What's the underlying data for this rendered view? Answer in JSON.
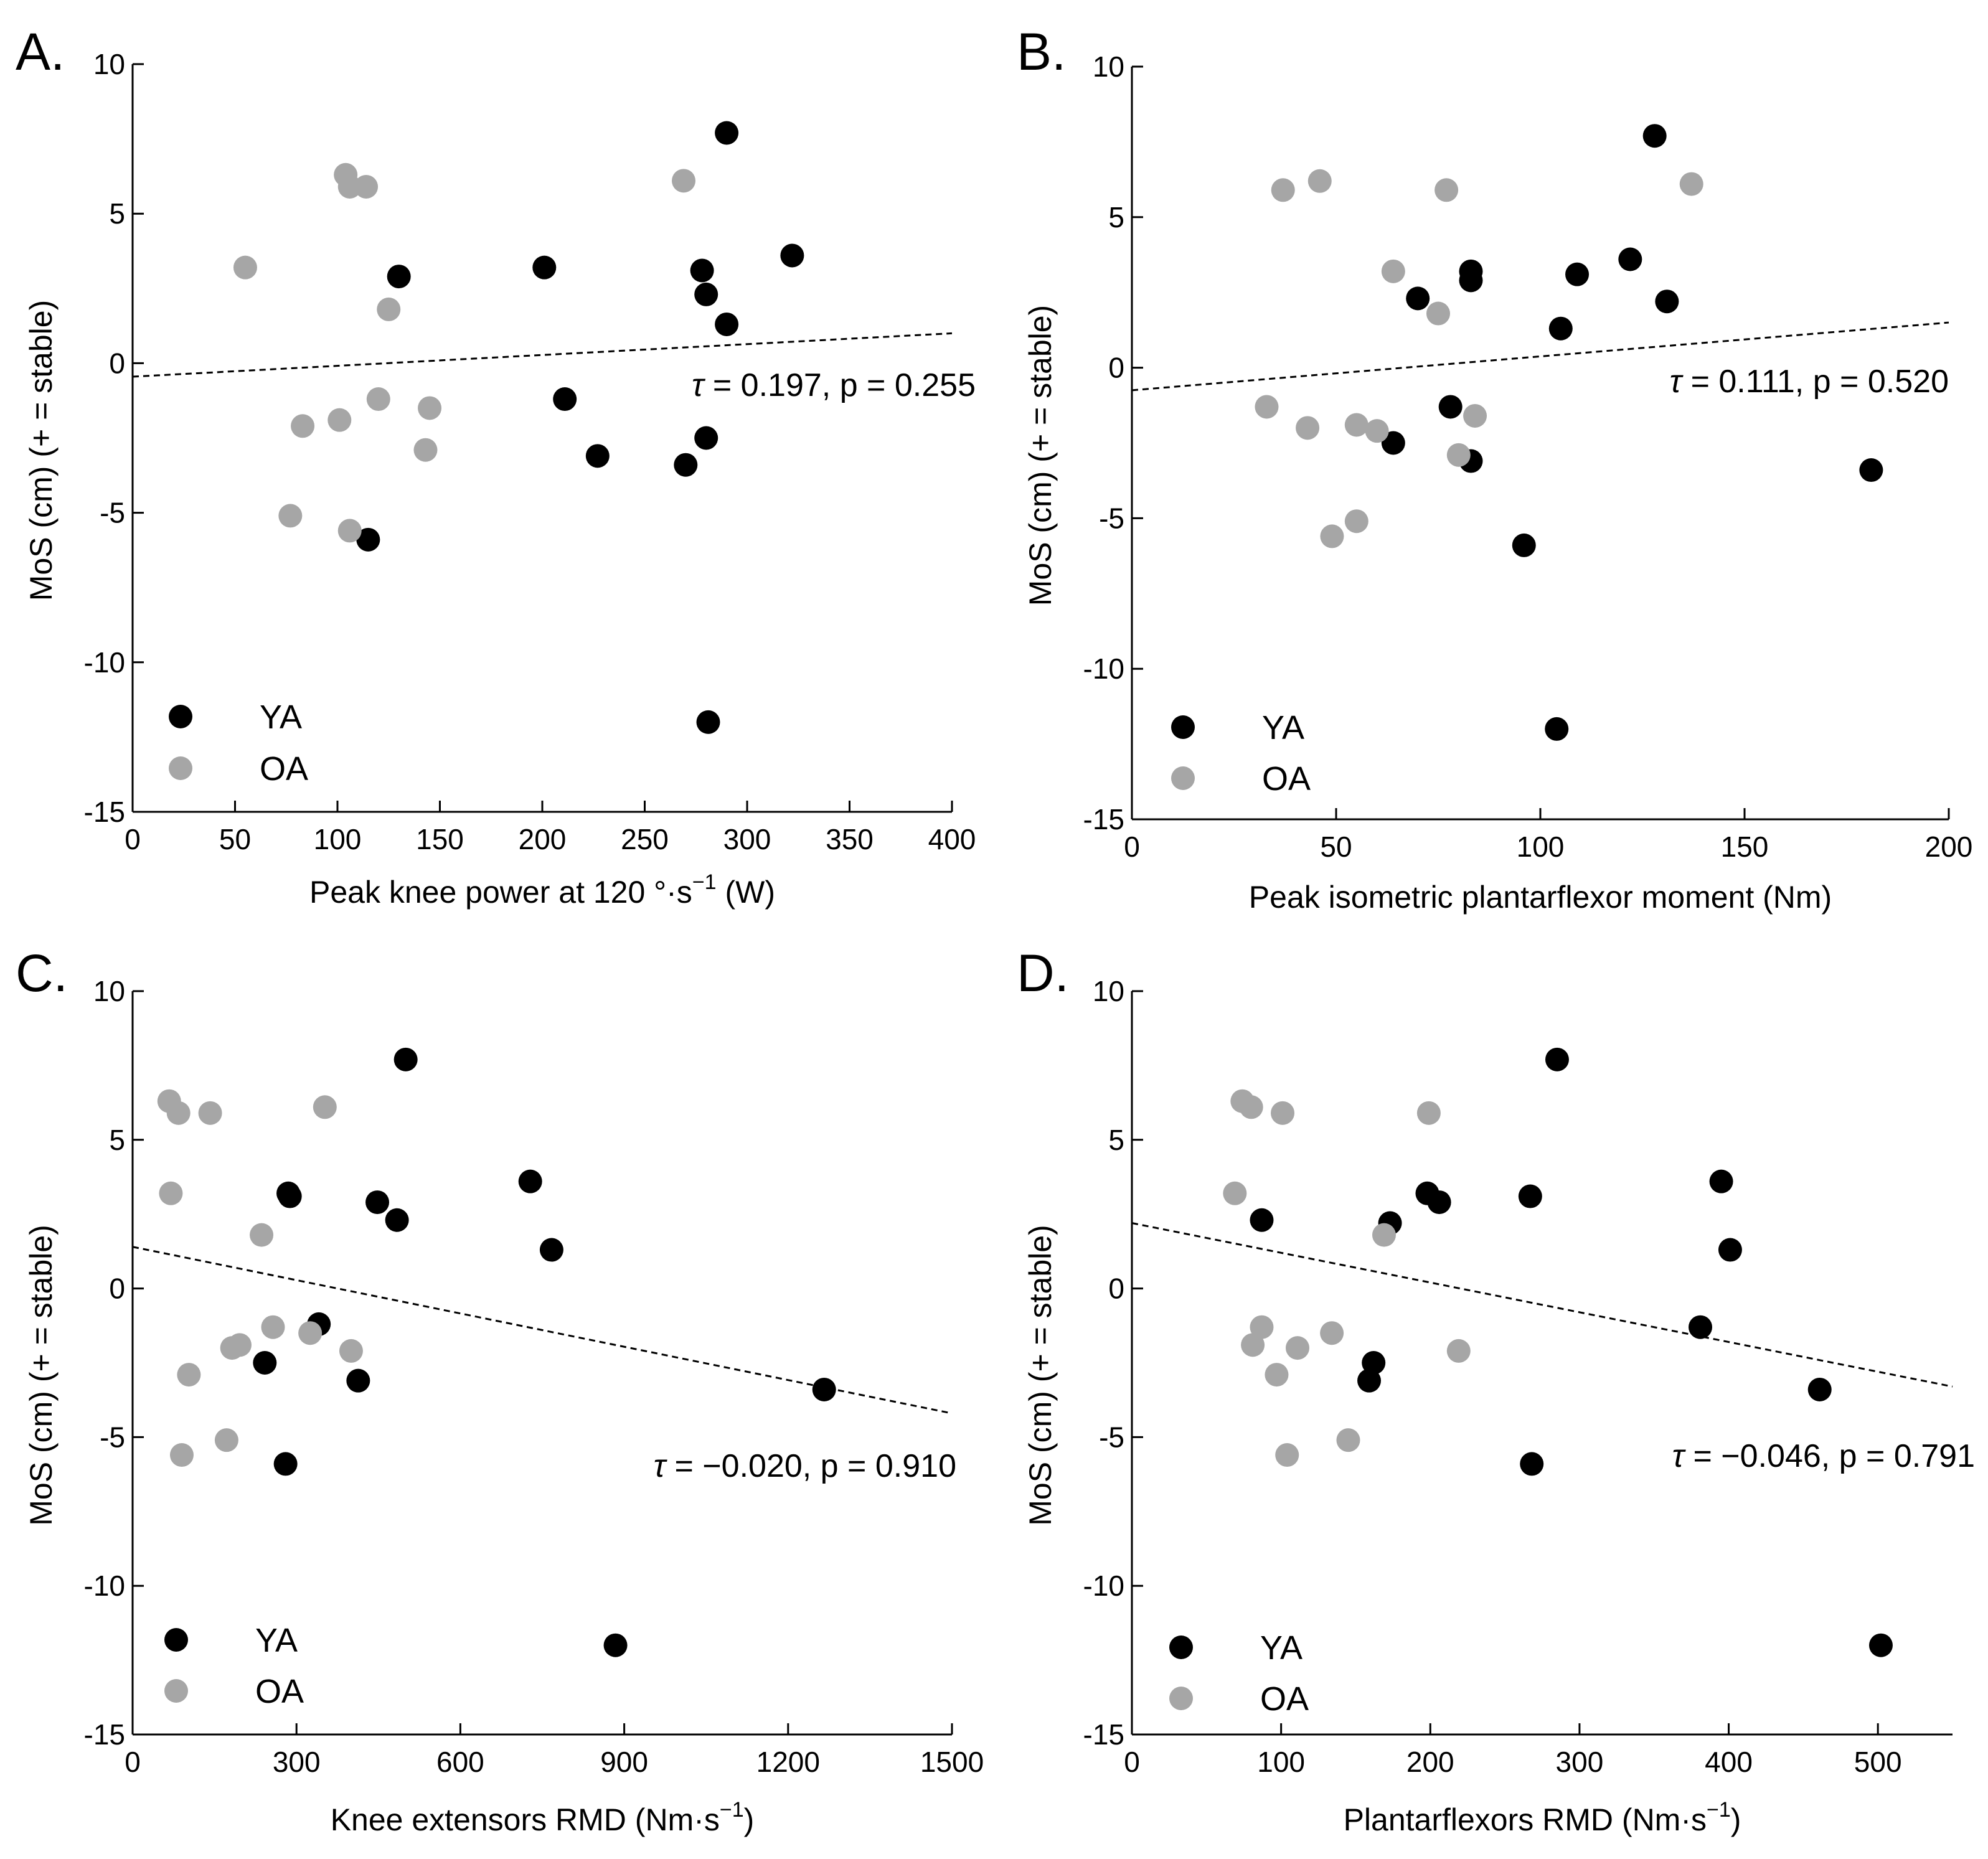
{
  "figure": {
    "colors": {
      "YA": "#000000",
      "OA": "#a6a6a6",
      "axis": "#000000",
      "fit": "#000000"
    }
  },
  "chart_data": [
    {
      "panel": "A.",
      "type": "scatter",
      "xlabel": "Peak knee power at 120 °·s",
      "xlabel_exp": "−1",
      "xlabel_tail": " (W)",
      "ylabel": "MoS (cm) (+ = stable)",
      "xlim": [
        0,
        400
      ],
      "ylim": [
        -15,
        10
      ],
      "xticks": [
        0,
        50,
        100,
        150,
        200,
        250,
        300,
        350,
        400
      ],
      "xtick_labels": [
        "0",
        "50",
        "100",
        "150",
        "200",
        "250",
        "300",
        "350",
        "400"
      ],
      "yticks": [
        -15,
        -10,
        -5,
        0,
        5,
        10
      ],
      "ytick_labels": [
        "-15",
        "-10",
        "-5",
        "0",
        "5",
        "10"
      ],
      "stat_tau": "τ",
      "stat_text": " = 0.197, p = 0.255",
      "trend": [
        [
          0,
          -0.45
        ],
        [
          400,
          1.0
        ]
      ],
      "legend": [
        "YA",
        "OA"
      ],
      "series": [
        {
          "name": "YA",
          "points": [
            [
              290,
              7.7
            ],
            [
              322,
              3.6
            ],
            [
              201,
              3.2
            ],
            [
              278,
              3.1
            ],
            [
              130,
              2.9
            ],
            [
              280,
              2.3
            ],
            [
              290,
              1.3
            ],
            [
              211,
              -1.2
            ],
            [
              280,
              -2.5
            ],
            [
              227,
              -3.1
            ],
            [
              270,
              -3.4
            ],
            [
              115,
              -5.9
            ],
            [
              281,
              -12.0
            ]
          ]
        },
        {
          "name": "OA",
          "points": [
            [
              104,
              6.3
            ],
            [
              106,
              5.9
            ],
            [
              114,
              5.9
            ],
            [
              269,
              6.1
            ],
            [
              55,
              3.2
            ],
            [
              125,
              1.8
            ],
            [
              120,
              -1.2
            ],
            [
              145,
              -1.5
            ],
            [
              101,
              -1.9
            ],
            [
              83,
              -2.1
            ],
            [
              143,
              -2.9
            ],
            [
              77,
              -5.1
            ],
            [
              106,
              -5.6
            ]
          ]
        }
      ]
    },
    {
      "panel": "B.",
      "type": "scatter",
      "xlabel": "Peak isometric plantarflexor moment (Nm)",
      "xlabel_exp": "",
      "xlabel_tail": "",
      "ylabel": "MoS (cm) (+ = stable)",
      "xlim": [
        0,
        200
      ],
      "ylim": [
        -15,
        10
      ],
      "xticks": [
        0,
        50,
        100,
        150,
        200
      ],
      "xtick_labels": [
        "0",
        "50",
        "100",
        "150",
        "200"
      ],
      "yticks": [
        -15,
        -10,
        -5,
        0,
        5,
        10
      ],
      "ytick_labels": [
        "-15",
        "-10",
        "-5",
        "0",
        "5",
        "10"
      ],
      "stat_tau": "τ",
      "stat_text": " = 0.111, p = 0.520",
      "trend": [
        [
          0,
          -0.75
        ],
        [
          200,
          1.5
        ]
      ],
      "legend": [
        "YA",
        "OA"
      ],
      "series": [
        {
          "name": "YA",
          "points": [
            [
              128,
              7.7
            ],
            [
              122,
              3.6
            ],
            [
              83,
              3.2
            ],
            [
              109,
              3.1
            ],
            [
              83,
              2.9
            ],
            [
              70,
              2.3
            ],
            [
              131,
              2.2
            ],
            [
              105,
              1.3
            ],
            [
              78,
              -1.3
            ],
            [
              64,
              -2.5
            ],
            [
              83,
              -3.1
            ],
            [
              181,
              -3.4
            ],
            [
              96,
              -5.9
            ],
            [
              104,
              -12.0
            ]
          ]
        },
        {
          "name": "OA",
          "points": [
            [
              37,
              5.9
            ],
            [
              46,
              6.2
            ],
            [
              77,
              5.9
            ],
            [
              137,
              6.1
            ],
            [
              64,
              3.2
            ],
            [
              75,
              1.8
            ],
            [
              33,
              -1.3
            ],
            [
              84,
              -1.6
            ],
            [
              43,
              -2.0
            ],
            [
              55,
              -1.9
            ],
            [
              60,
              -2.1
            ],
            [
              80,
              -2.9
            ],
            [
              55,
              -5.1
            ],
            [
              49,
              -5.6
            ]
          ]
        }
      ]
    },
    {
      "panel": "C.",
      "type": "scatter",
      "xlabel": "Knee extensors RMD (Nm·s",
      "xlabel_exp": "−1",
      "xlabel_tail": ")",
      "ylabel": "MoS (cm) (+ = stable)",
      "xlim": [
        0,
        1500
      ],
      "ylim": [
        -15,
        10
      ],
      "xticks": [
        0,
        300,
        600,
        900,
        1200,
        1500
      ],
      "xtick_labels": [
        "0",
        "300",
        "600",
        "900",
        "1200",
        "1500"
      ],
      "yticks": [
        -15,
        -10,
        -5,
        0,
        5,
        10
      ],
      "ytick_labels": [
        "-15",
        "-10",
        "-5",
        "0",
        "5",
        "10"
      ],
      "stat_tau": "τ",
      "stat_text": " = −0.020, p = 0.910",
      "trend": [
        [
          0,
          1.4
        ],
        [
          1500,
          -4.2
        ]
      ],
      "legend": [
        "YA",
        "OA"
      ],
      "series": [
        {
          "name": "YA",
          "points": [
            [
              500,
              7.7
            ],
            [
              728,
              3.6
            ],
            [
              285,
              3.2
            ],
            [
              288,
              3.1
            ],
            [
              448,
              2.9
            ],
            [
              484,
              2.3
            ],
            [
              767,
              1.3
            ],
            [
              341,
              -1.2
            ],
            [
              242,
              -2.5
            ],
            [
              413,
              -3.1
            ],
            [
              1266,
              -3.4
            ],
            [
              280,
              -5.9
            ],
            [
              884,
              -12.0
            ]
          ]
        },
        {
          "name": "OA",
          "points": [
            [
              67,
              6.3
            ],
            [
              84,
              5.9
            ],
            [
              142,
              5.9
            ],
            [
              352,
              6.1
            ],
            [
              70,
              3.2
            ],
            [
              236,
              1.8
            ],
            [
              257,
              -1.3
            ],
            [
              325,
              -1.5
            ],
            [
              196,
              -1.9
            ],
            [
              182,
              -2.0
            ],
            [
              400,
              -2.1
            ],
            [
              103,
              -2.9
            ],
            [
              172,
              -5.1
            ],
            [
              90,
              -5.6
            ]
          ]
        }
      ]
    },
    {
      "panel": "D.",
      "type": "scatter",
      "xlabel": "Plantarflexors RMD (Nm·s",
      "xlabel_exp": "−1",
      "xlabel_tail": ")",
      "ylabel": "MoS (cm) (+ = stable)",
      "xlim": [
        0,
        550
      ],
      "ylim": [
        -15,
        10
      ],
      "xticks": [
        0,
        100,
        200,
        300,
        400,
        500
      ],
      "xtick_labels": [
        "0",
        "100",
        "200",
        "300",
        "400",
        "500"
      ],
      "yticks": [
        -15,
        -10,
        -5,
        0,
        5,
        10
      ],
      "ytick_labels": [
        "-15",
        "-10",
        "-5",
        "0",
        "5",
        "10"
      ],
      "stat_tau": "τ",
      "stat_text": " = −0.046, p = 0.791",
      "trend": [
        [
          0,
          2.2
        ],
        [
          550,
          -3.3
        ]
      ],
      "legend": [
        "YA",
        "OA"
      ],
      "series": [
        {
          "name": "YA",
          "points": [
            [
              285,
              7.7
            ],
            [
              395,
              3.6
            ],
            [
              198,
              3.2
            ],
            [
              267,
              3.1
            ],
            [
              206,
              2.9
            ],
            [
              87,
              2.3
            ],
            [
              173,
              2.2
            ],
            [
              401,
              1.3
            ],
            [
              381,
              -1.3
            ],
            [
              162,
              -2.5
            ],
            [
              159,
              -3.1
            ],
            [
              461,
              -3.4
            ],
            [
              268,
              -5.9
            ],
            [
              502,
              -12.0
            ]
          ]
        },
        {
          "name": "OA",
          "points": [
            [
              74,
              6.3
            ],
            [
              80,
              6.1
            ],
            [
              101,
              5.9
            ],
            [
              199,
              5.9
            ],
            [
              69,
              3.2
            ],
            [
              169,
              1.8
            ],
            [
              87,
              -1.3
            ],
            [
              134,
              -1.5
            ],
            [
              81,
              -1.9
            ],
            [
              111,
              -2.0
            ],
            [
              219,
              -2.1
            ],
            [
              97,
              -2.9
            ],
            [
              145,
              -5.1
            ],
            [
              104,
              -5.6
            ]
          ]
        }
      ]
    }
  ]
}
